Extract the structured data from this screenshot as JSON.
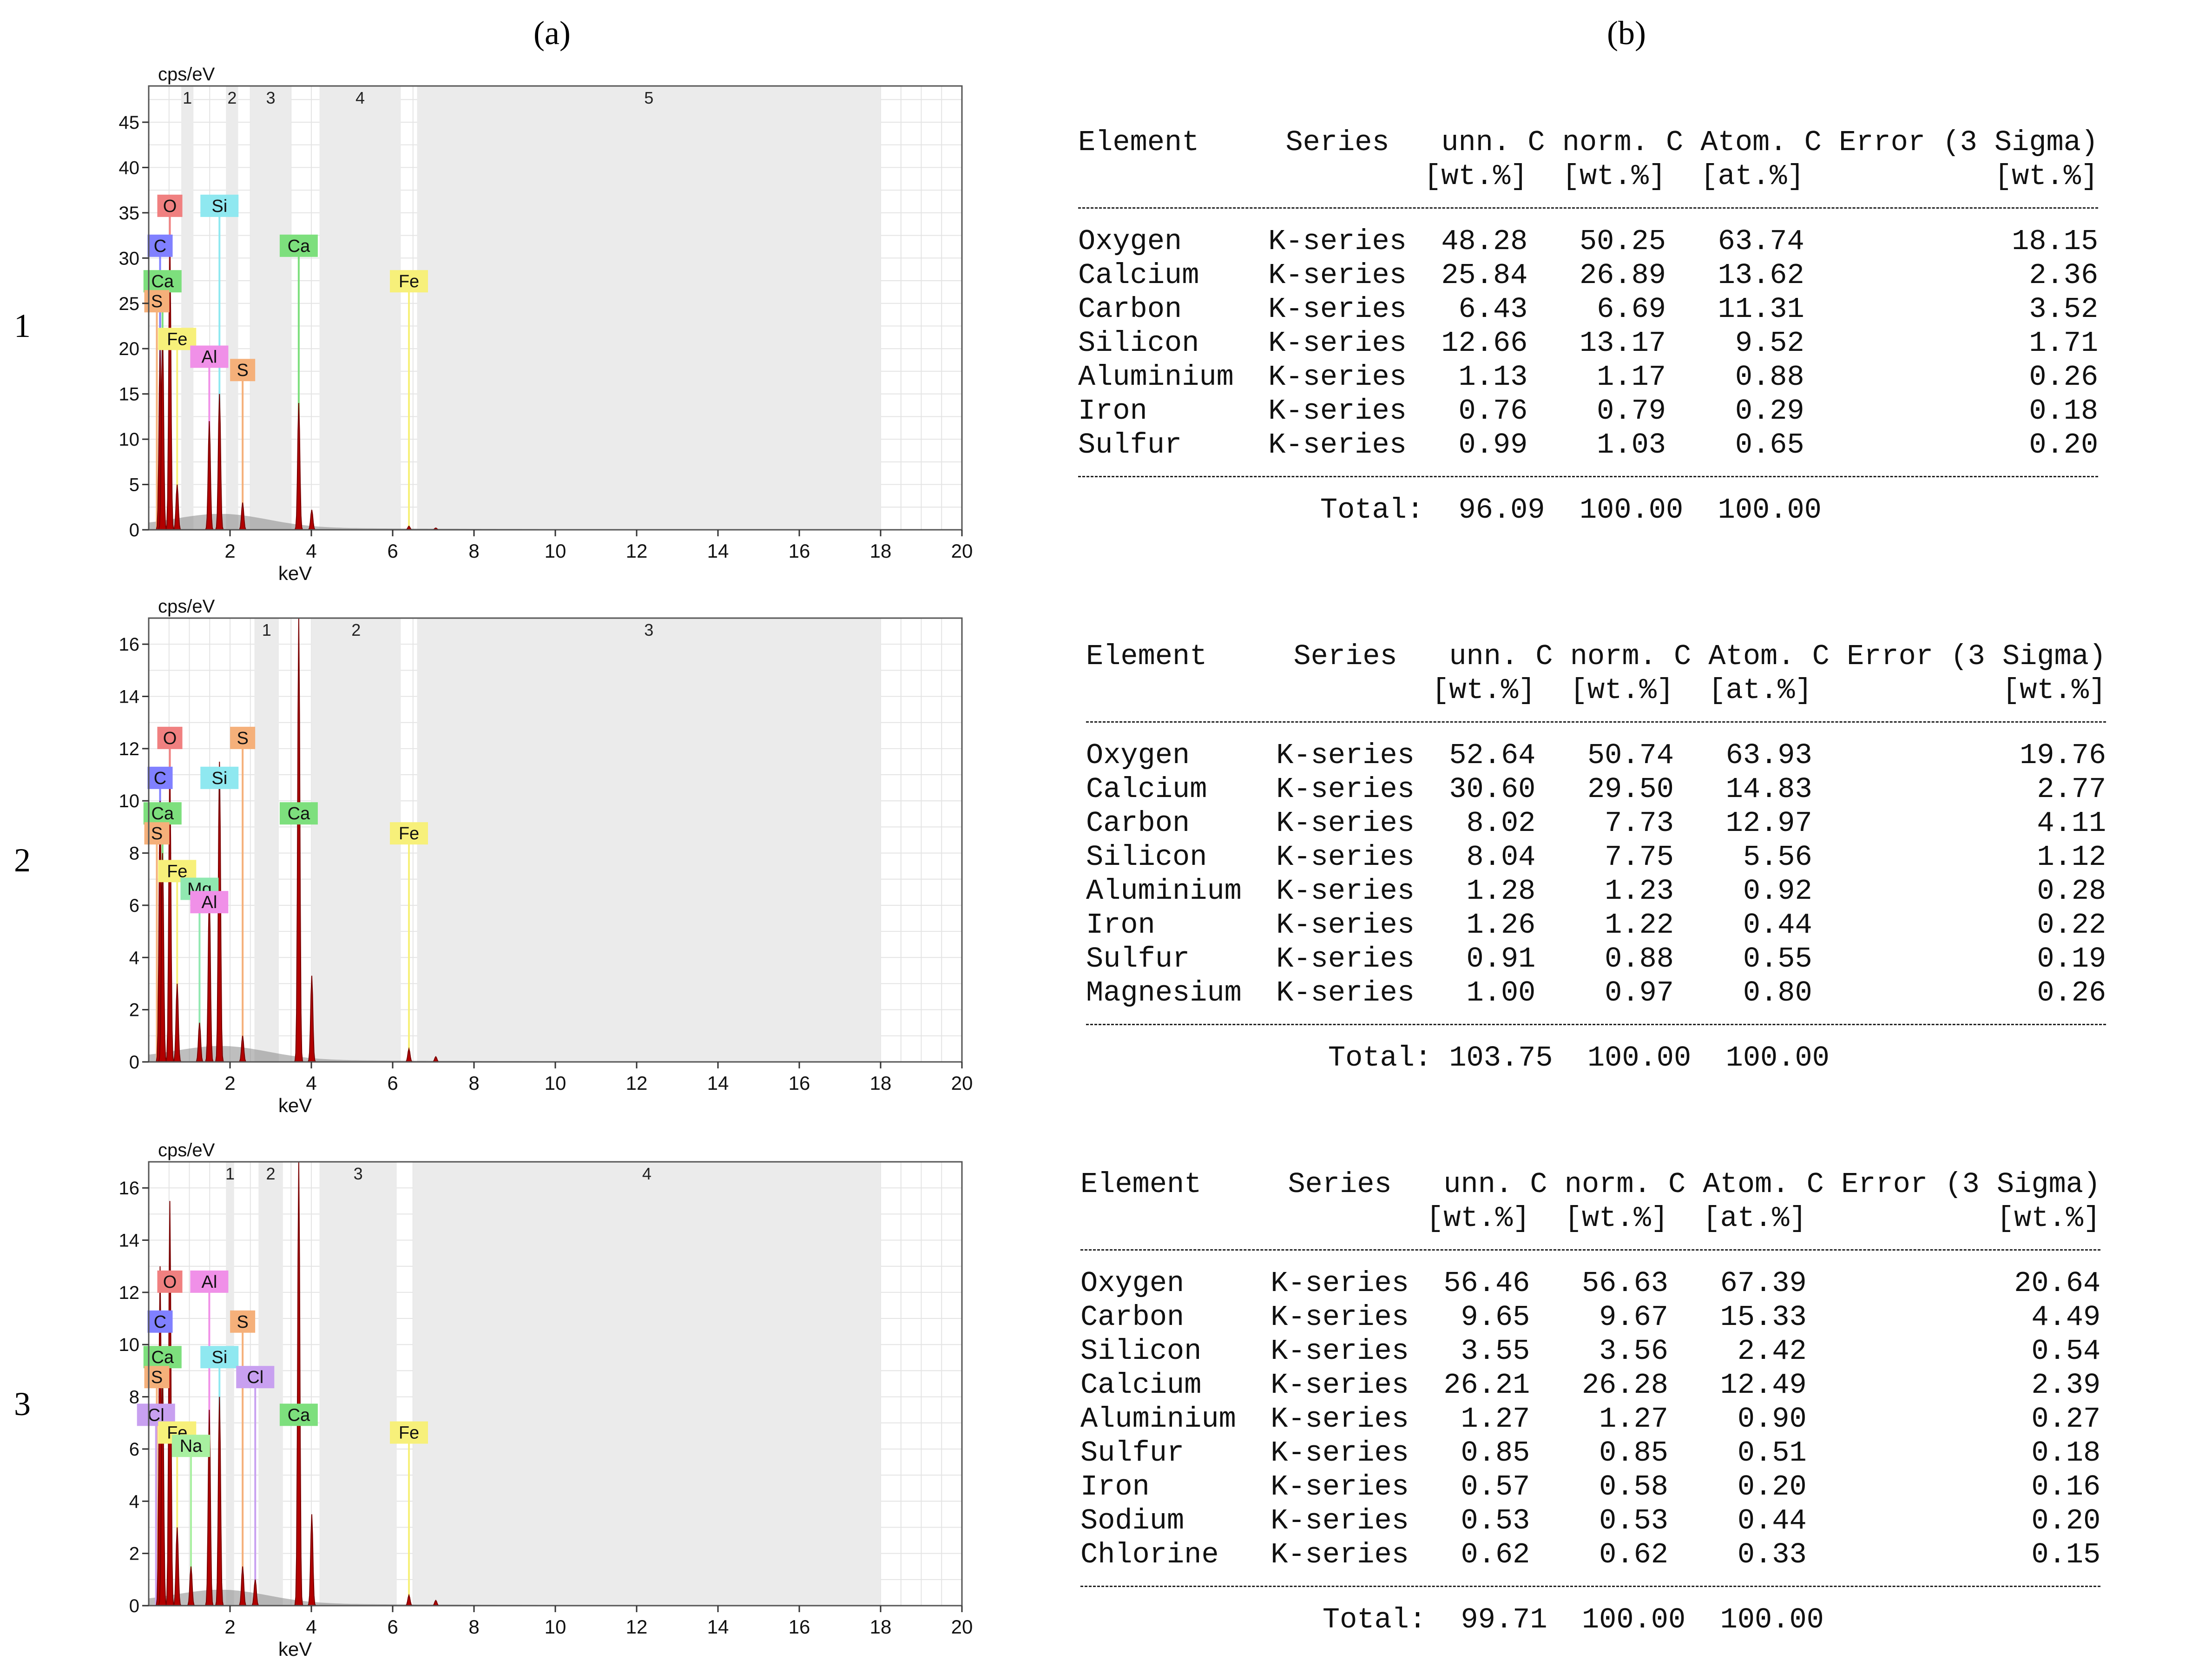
{
  "panel_labels": {
    "a": "(a)",
    "b": "(b)"
  },
  "row_labels": [
    "1",
    "2",
    "3"
  ],
  "axis": {
    "ylabel": "cps/eV",
    "xlabel": "keV"
  },
  "colors": {
    "O": "#f08080",
    "C": "#8080ff",
    "Ca": "#7ddf7d",
    "Si": "#8fe8f0",
    "Al": "#f090e8",
    "S": "#f5b07a",
    "Fe": "#f7f07a",
    "Mg": "#90e8b0",
    "Na": "#a8f0a0",
    "Cl": "#c8a0f0",
    "spectrum": "#b20000",
    "background": "#888888"
  },
  "chart_data": [
    {
      "type": "area",
      "xlabel": "keV",
      "ylabel": "cps/eV",
      "xlim": [
        0,
        20
      ],
      "ylim": [
        0,
        49
      ],
      "xticks": [
        2,
        4,
        6,
        8,
        10,
        12,
        14,
        16,
        18,
        20
      ],
      "yticks": [
        0,
        5,
        10,
        15,
        20,
        25,
        30,
        35,
        40,
        45
      ],
      "regions": [
        {
          "label": "1",
          "x0": 0.8,
          "x1": 1.1
        },
        {
          "label": "2",
          "x0": 1.9,
          "x1": 2.2
        },
        {
          "label": "3",
          "x0": 2.5,
          "x1": 3.5
        },
        {
          "label": "4",
          "x0": 4.2,
          "x1": 6.2
        },
        {
          "label": "5",
          "x0": 6.6,
          "x1": 18.0
        }
      ],
      "peaks": [
        {
          "x": 0.28,
          "y": 20
        },
        {
          "x": 0.34,
          "y": 22
        },
        {
          "x": 0.52,
          "y": 31
        },
        {
          "x": 0.7,
          "y": 5
        },
        {
          "x": 1.49,
          "y": 12
        },
        {
          "x": 1.74,
          "y": 15
        },
        {
          "x": 2.31,
          "y": 3
        },
        {
          "x": 3.69,
          "y": 14
        },
        {
          "x": 4.01,
          "y": 2.2
        },
        {
          "x": 6.4,
          "y": 0.4
        },
        {
          "x": 7.06,
          "y": 0.2
        }
      ],
      "element_lines": [
        {
          "el": "O",
          "x": 0.52
        },
        {
          "el": "C",
          "x": 0.28
        },
        {
          "el": "Ca",
          "x": 0.34
        },
        {
          "el": "S",
          "x": 0.2
        },
        {
          "el": "Fe",
          "x": 0.7
        },
        {
          "el": "Al",
          "x": 1.49
        },
        {
          "el": "S",
          "x": 2.31
        },
        {
          "el": "Si",
          "x": 1.74
        },
        {
          "el": "Ca",
          "x": 3.69
        },
        {
          "el": "Fe",
          "x": 6.4
        }
      ]
    },
    {
      "type": "area",
      "xlabel": "keV",
      "ylabel": "cps/eV",
      "xlim": [
        0,
        20
      ],
      "ylim": [
        0,
        17
      ],
      "xticks": [
        2,
        4,
        6,
        8,
        10,
        12,
        14,
        16,
        18,
        20
      ],
      "yticks": [
        0,
        2,
        4,
        6,
        8,
        10,
        12,
        14,
        16
      ],
      "regions": [
        {
          "label": "1",
          "x0": 2.6,
          "x1": 3.2
        },
        {
          "label": "2",
          "x0": 4.0,
          "x1": 6.2
        },
        {
          "label": "3",
          "x0": 6.6,
          "x1": 18.0
        }
      ],
      "peaks": [
        {
          "x": 0.28,
          "y": 10
        },
        {
          "x": 0.34,
          "y": 8
        },
        {
          "x": 0.52,
          "y": 11
        },
        {
          "x": 0.7,
          "y": 3
        },
        {
          "x": 1.25,
          "y": 1.5
        },
        {
          "x": 1.49,
          "y": 6.5
        },
        {
          "x": 1.74,
          "y": 11.5
        },
        {
          "x": 2.31,
          "y": 1.0
        },
        {
          "x": 3.69,
          "y": 17
        },
        {
          "x": 4.01,
          "y": 3.3
        },
        {
          "x": 6.4,
          "y": 0.5
        },
        {
          "x": 7.06,
          "y": 0.2
        }
      ],
      "element_lines": [
        {
          "el": "O",
          "x": 0.52
        },
        {
          "el": "C",
          "x": 0.28
        },
        {
          "el": "Ca",
          "x": 0.34
        },
        {
          "el": "S",
          "x": 0.2
        },
        {
          "el": "Fe",
          "x": 0.7
        },
        {
          "el": "Mg",
          "x": 1.25
        },
        {
          "el": "Al",
          "x": 1.49
        },
        {
          "el": "S",
          "x": 2.31
        },
        {
          "el": "Si",
          "x": 1.74
        },
        {
          "el": "Ca",
          "x": 3.69
        },
        {
          "el": "Fe",
          "x": 6.4
        }
      ]
    },
    {
      "type": "area",
      "xlabel": "keV",
      "ylabel": "cps/eV",
      "xlim": [
        0,
        20
      ],
      "ylim": [
        0,
        17
      ],
      "xticks": [
        2,
        4,
        6,
        8,
        10,
        12,
        14,
        16,
        18,
        20
      ],
      "yticks": [
        0,
        2,
        4,
        6,
        8,
        10,
        12,
        14,
        16
      ],
      "regions": [
        {
          "label": "1",
          "x0": 1.9,
          "x1": 2.1
        },
        {
          "label": "2",
          "x0": 2.7,
          "x1": 3.3
        },
        {
          "label": "3",
          "x0": 4.2,
          "x1": 6.1
        },
        {
          "label": "4",
          "x0": 6.5,
          "x1": 18.0
        }
      ],
      "peaks": [
        {
          "x": 0.28,
          "y": 13
        },
        {
          "x": 0.34,
          "y": 9
        },
        {
          "x": 0.52,
          "y": 15.5
        },
        {
          "x": 0.7,
          "y": 3
        },
        {
          "x": 1.04,
          "y": 1.5
        },
        {
          "x": 1.49,
          "y": 7.5
        },
        {
          "x": 1.74,
          "y": 8
        },
        {
          "x": 2.31,
          "y": 1.5
        },
        {
          "x": 2.62,
          "y": 1.0
        },
        {
          "x": 3.69,
          "y": 17
        },
        {
          "x": 4.01,
          "y": 3.5
        },
        {
          "x": 6.4,
          "y": 0.4
        },
        {
          "x": 7.06,
          "y": 0.2
        }
      ],
      "element_lines": [
        {
          "el": "O",
          "x": 0.52
        },
        {
          "el": "C",
          "x": 0.28
        },
        {
          "el": "Ca",
          "x": 0.34
        },
        {
          "el": "S",
          "x": 0.2
        },
        {
          "el": "Cl",
          "x": 0.18
        },
        {
          "el": "Fe",
          "x": 0.7
        },
        {
          "el": "Na",
          "x": 1.04
        },
        {
          "el": "Al",
          "x": 1.49
        },
        {
          "el": "S",
          "x": 2.31
        },
        {
          "el": "Si",
          "x": 1.74
        },
        {
          "el": "Cl",
          "x": 2.62
        },
        {
          "el": "Ca",
          "x": 3.69
        },
        {
          "el": "Fe",
          "x": 6.4
        }
      ]
    }
  ],
  "tables": [
    {
      "header1": "Element     Series   unn. C norm. C Atom. C Error (3 Sigma)",
      "header2": "                    [wt.%]  [wt.%]  [at.%]           [wt.%]",
      "rows": [
        "Oxygen     K-series  48.28   50.25   63.74            18.15",
        "Calcium    K-series  25.84   26.89   13.62             2.36",
        "Carbon     K-series   6.43    6.69   11.31             3.52",
        "Silicon    K-series  12.66   13.17    9.52             1.71",
        "Aluminium  K-series   1.13    1.17    0.88             0.26",
        "Iron       K-series   0.76    0.79    0.29             0.18",
        "Sulfur     K-series   0.99    1.03    0.65             0.20"
      ],
      "total": "              Total:  96.09  100.00  100.00"
    },
    {
      "header1": "Element     Series   unn. C norm. C Atom. C Error (3 Sigma)",
      "header2": "                    [wt.%]  [wt.%]  [at.%]           [wt.%]",
      "rows": [
        "Oxygen     K-series  52.64   50.74   63.93            19.76",
        "Calcium    K-series  30.60   29.50   14.83             2.77",
        "Carbon     K-series   8.02    7.73   12.97             4.11",
        "Silicon    K-series   8.04    7.75    5.56             1.12",
        "Aluminium  K-series   1.28    1.23    0.92             0.28",
        "Iron       K-series   1.26    1.22    0.44             0.22",
        "Sulfur     K-series   0.91    0.88    0.55             0.19",
        "Magnesium  K-series   1.00    0.97    0.80             0.26"
      ],
      "total": "              Total: 103.75  100.00  100.00"
    },
    {
      "header1": "Element     Series   unn. C norm. C Atom. C Error (3 Sigma)",
      "header2": "                    [wt.%]  [wt.%]  [at.%]           [wt.%]",
      "rows": [
        "Oxygen     K-series  56.46   56.63   67.39            20.64",
        "Carbon     K-series   9.65    9.67   15.33             4.49",
        "Silicon    K-series   3.55    3.56    2.42             0.54",
        "Calcium    K-series  26.21   26.28   12.49             2.39",
        "Aluminium  K-series   1.27    1.27    0.90             0.27",
        "Sulfur     K-series   0.85    0.85    0.51             0.18",
        "Iron       K-series   0.57    0.58    0.20             0.16",
        "Sodium     K-series   0.53    0.53    0.44             0.20",
        "Chlorine   K-series   0.62    0.62    0.33             0.15"
      ],
      "total": "              Total:  99.71  100.00  100.00"
    }
  ]
}
